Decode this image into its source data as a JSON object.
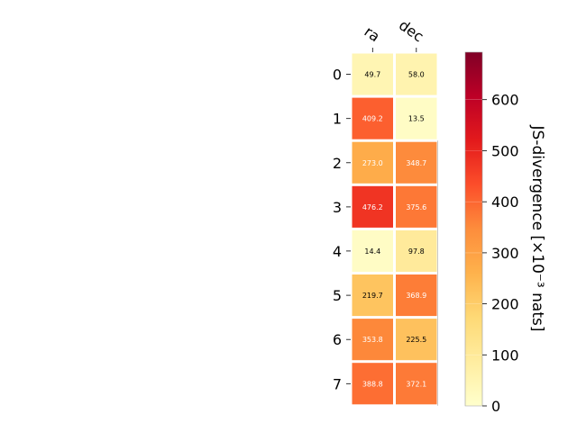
{
  "chart_data": {
    "type": "heatmap",
    "columns": [
      "ra",
      "dec"
    ],
    "rows": [
      "0",
      "1",
      "2",
      "3",
      "4",
      "5",
      "6",
      "7"
    ],
    "values": [
      [
        49.7,
        58.0
      ],
      [
        409.2,
        13.5
      ],
      [
        273.0,
        348.7
      ],
      [
        476.2,
        375.6
      ],
      [
        14.4,
        97.8
      ],
      [
        219.7,
        368.9
      ],
      [
        353.8,
        225.5
      ],
      [
        388.8,
        372.1
      ]
    ],
    "value_labels": [
      [
        "49.7",
        "58.0"
      ],
      [
        "409.2",
        "13.5"
      ],
      [
        "273.0",
        "348.7"
      ],
      [
        "476.2",
        "375.6"
      ],
      [
        "14.4",
        "97.8"
      ],
      [
        "219.7",
        "368.9"
      ],
      [
        "353.8",
        "225.5"
      ],
      [
        "388.8",
        "372.1"
      ]
    ],
    "colorbar": {
      "label": "JS-divergence [×10⁻³ nats]",
      "range": [
        0,
        693
      ],
      "ticks": [
        0,
        100,
        200,
        300,
        400,
        500,
        600
      ],
      "tick_labels": [
        "0",
        "100",
        "200",
        "300",
        "400",
        "500",
        "600"
      ],
      "colormap": "YlOrRd"
    }
  }
}
